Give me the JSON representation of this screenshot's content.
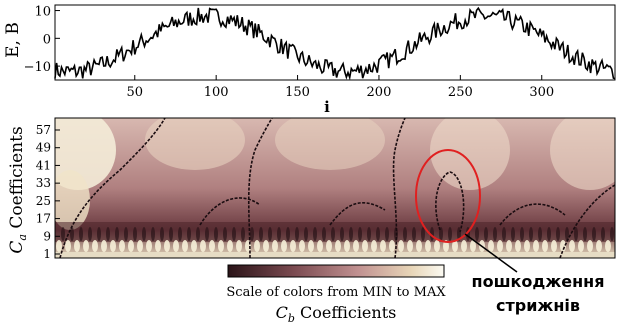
{
  "chart_data": [
    {
      "type": "line",
      "ylabel": "E, B",
      "xlabel": "i",
      "xlim": [
        1,
        345
      ],
      "ylim": [
        -15,
        12
      ],
      "x_ticks": [
        "50",
        "100",
        "150",
        "200",
        "250",
        "300"
      ],
      "y_ticks": [
        "10",
        "0",
        "−10"
      ],
      "signal": {
        "amplitude": 10,
        "period": 170,
        "peak_at": 95,
        "noise": 3.2,
        "n": 345
      },
      "line_color": "#000000"
    },
    {
      "type": "heatmap",
      "ylabel_main": "C",
      "ylabel_sub": "a",
      "ylabel_tail": " Coefficients",
      "y_ticks": [
        "57",
        "49",
        "41",
        "33",
        "25",
        "17",
        "9",
        "1"
      ],
      "colorbar": {
        "label": "Scale of colors from MIN to MAX",
        "colors": [
          "#2a1418",
          "#7a4a50",
          "#c09090",
          "#e8d6b8",
          "#fbfaf2"
        ]
      },
      "xlabel_main": "C",
      "xlabel_sub": "b",
      "xlabel_tail": " Coefficients",
      "annotation": {
        "lines": [
          "пошкодження",
          "стрижнів"
        ],
        "ellipse_color": "#e02020"
      }
    }
  ]
}
